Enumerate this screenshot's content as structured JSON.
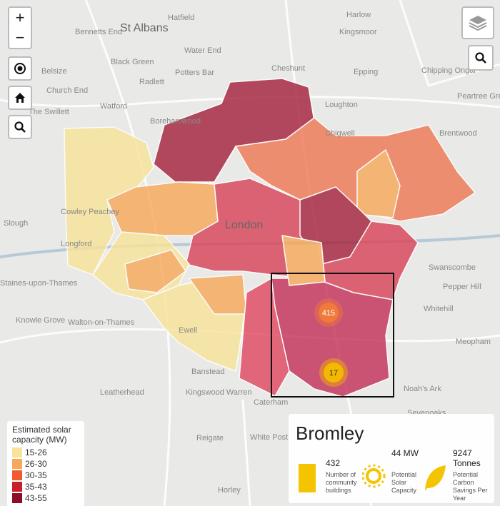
{
  "map": {
    "place_labels": [
      "St Albans",
      "Hatfield",
      "Harlow",
      "Bennetts End",
      "Kingsmoor",
      "Water End",
      "Black Green",
      "Cheshunt",
      "Potters Bar",
      "Epping",
      "Chipping Ongar",
      "Belsize",
      "Church End",
      "Radlett",
      "Borehamwood",
      "Loughton",
      "Watford",
      "The Swillett",
      "Chigwell",
      "Brentwood",
      "Slough",
      "Cowley Peachey",
      "Longford",
      "London",
      "Swanscombe",
      "Staines-upon-Thames",
      "Walton-on-Thames",
      "Knowle Grove",
      "Ewell",
      "Banstead",
      "Leatherhead",
      "Kingswood Warren",
      "Caterham",
      "Reigate",
      "White Post",
      "Horley",
      "Sevenoaks",
      "Noah's Ark",
      "Whitehill",
      "Pepper Hill",
      "Meopham",
      "Peartree Green"
    ],
    "clusters": [
      "415",
      "17"
    ]
  },
  "controls": {
    "zoom_in": "+",
    "zoom_out": "−"
  },
  "legend": {
    "title": "Estimated solar capacity (MW)",
    "items": [
      {
        "label": "15-26",
        "color": "#f8e39a"
      },
      {
        "label": "26-30",
        "color": "#f6a95b"
      },
      {
        "label": "30-35",
        "color": "#ef5a2e"
      },
      {
        "label": "35-43",
        "color": "#c81e2c"
      },
      {
        "label": "43-55",
        "color": "#8c0d2a"
      }
    ]
  },
  "panel": {
    "title": "Bromley",
    "buildings": "432",
    "buildings_label": "Number of community buildings",
    "capacity": "44 MW",
    "capacity_label": "Potential Solar Capacity",
    "carbon": "9247 Tonnes",
    "carbon_label": "Potential Carbon Savings Per Year"
  }
}
